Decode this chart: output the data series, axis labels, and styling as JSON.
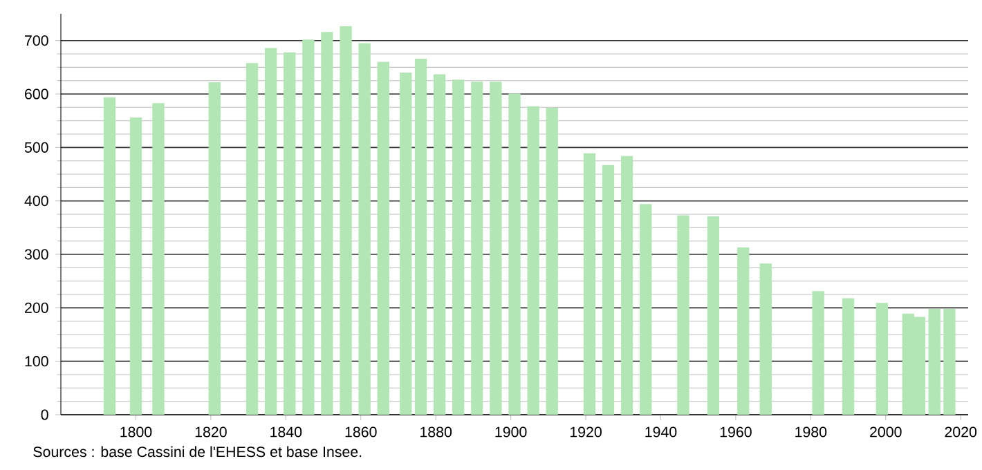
{
  "chart_data": {
    "type": "bar",
    "x": [
      1793,
      1800,
      1806,
      1821,
      1831,
      1836,
      1841,
      1846,
      1851,
      1856,
      1861,
      1866,
      1872,
      1876,
      1881,
      1886,
      1891,
      1896,
      1901,
      1906,
      1911,
      1921,
      1926,
      1931,
      1936,
      1946,
      1954,
      1962,
      1968,
      1982,
      1990,
      1999,
      2006,
      2009,
      2013,
      2017
    ],
    "values": [
      594,
      556,
      583,
      622,
      658,
      686,
      678,
      702,
      716,
      727,
      695,
      660,
      640,
      666,
      637,
      627,
      623,
      623,
      601,
      577,
      574,
      489,
      467,
      484,
      394,
      373,
      371,
      313,
      283,
      231,
      218,
      209,
      189,
      183,
      198,
      198
    ],
    "color": "#b3e6b5",
    "xlim": [
      1780,
      2022
    ],
    "ylim": [
      0,
      750
    ],
    "xticks": [
      1800,
      1820,
      1840,
      1860,
      1880,
      1900,
      1920,
      1940,
      1960,
      1980,
      2000,
      2020
    ],
    "yticks": [
      0,
      100,
      200,
      300,
      400,
      500,
      600,
      700
    ],
    "grid": "y",
    "annotations": [
      "Sources : base Cassini de l'EHESS et base Insee."
    ]
  }
}
